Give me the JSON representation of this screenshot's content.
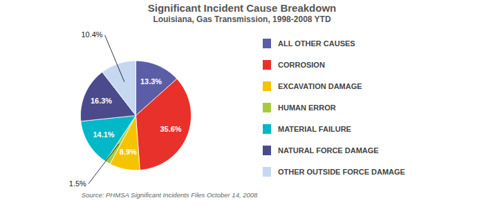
{
  "chart_data": {
    "type": "pie",
    "title": "Significant Incident Cause Breakdown",
    "subtitle": "Louisiana, Gas Transmission, 1998-2008 YTD",
    "source": "Source: PHMSA Significant Incidents Files October 14, 2008",
    "categories": [
      "ALL OTHER CAUSES",
      "CORROSION",
      "EXCAVATION DAMAGE",
      "HUMAN ERROR",
      "MATERIAL FAILURE",
      "NATURAL FORCE DAMAGE",
      "OTHER OUTSIDE FORCE DAMAGE"
    ],
    "values": [
      13.3,
      35.6,
      8.9,
      1.5,
      14.1,
      16.3,
      10.4
    ],
    "value_labels": [
      "13.3%",
      "35.6%",
      "8.9%",
      "1.5%",
      "14.1%",
      "16.3%",
      "10.4%"
    ],
    "colors": [
      "#5b5ea6",
      "#e8312a",
      "#f5c400",
      "#a8c840",
      "#00b8c8",
      "#4a4a8c",
      "#c5d8f0"
    ],
    "data_labels": true,
    "legend": "right"
  }
}
